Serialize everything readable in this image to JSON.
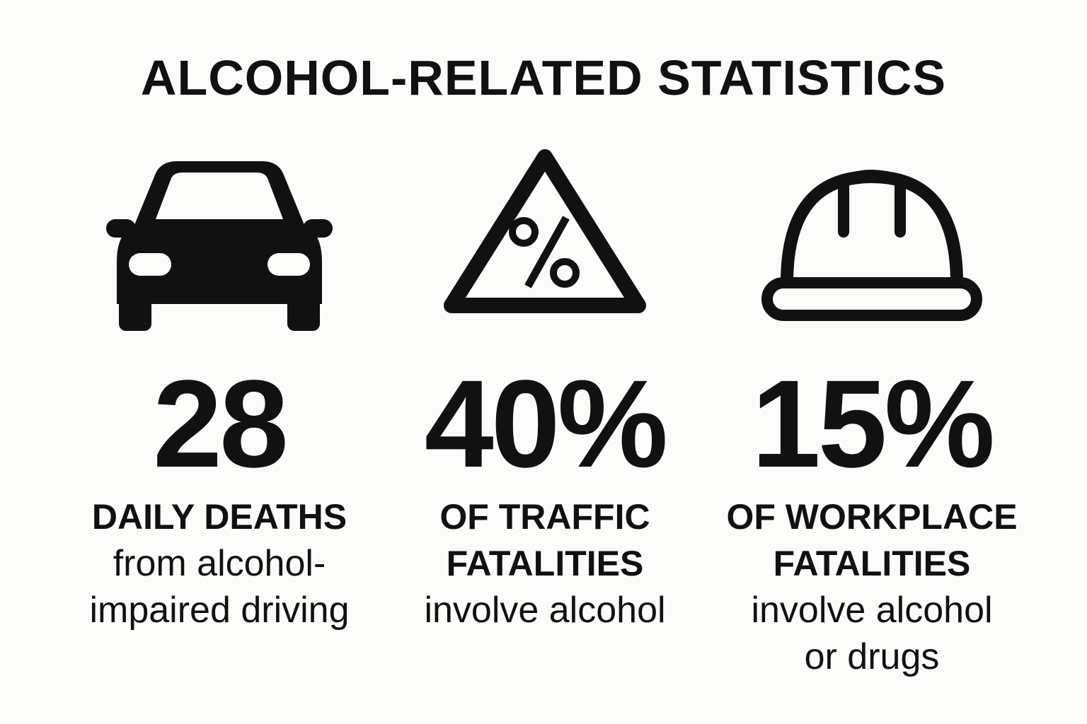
{
  "title": "ALCOHOL-RELATED STATISTICS",
  "stats": [
    {
      "value": "28",
      "headline": [
        "DAILY DEATHS"
      ],
      "description": [
        "from alcohol-",
        "impaired driving"
      ]
    },
    {
      "value": "40%",
      "headline": [
        "OF TRAFFIC",
        "FATALITIES"
      ],
      "description": [
        "involve alcohol"
      ]
    },
    {
      "value": "15%",
      "headline": [
        "OF WORKPLACE",
        "FATALITIES"
      ],
      "description": [
        "involve alcohol",
        "or drugs"
      ]
    }
  ]
}
